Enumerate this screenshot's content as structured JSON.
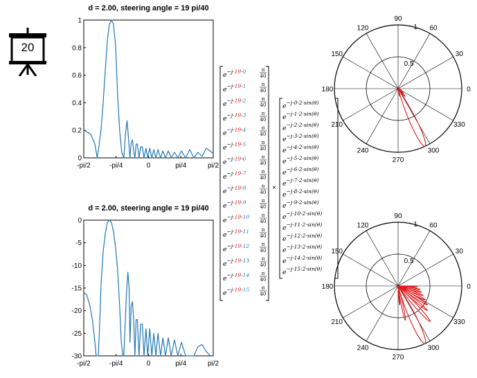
{
  "slide_number": "20",
  "colors": {
    "line": "#1f77b4",
    "polar": "#e0191a",
    "red_text": "#e0191a",
    "blue_text": "#1f77b4"
  },
  "chart_data": [
    {
      "type": "line",
      "title": "d = 2.00, steering angle  = 19 pi/40",
      "x_tick_labels": [
        "-pi/2",
        "-pi/4",
        "0",
        "pi/4",
        "pi/2"
      ],
      "x_ticks": [
        -1.5708,
        -0.7854,
        0,
        0.7854,
        1.5708
      ],
      "xlim": [
        -1.5708,
        1.5708
      ],
      "ylim": [
        0,
        1
      ],
      "y_ticks": [
        0,
        0.2,
        0.4,
        0.6,
        0.8,
        1
      ],
      "y_tick_labels": [
        "0",
        "0.2",
        "0.4",
        "0.6",
        "0.8",
        "1"
      ],
      "grid": false,
      "x": [
        -1.5708,
        -1.5,
        -1.4,
        -1.3,
        -1.245,
        -1.2,
        -1.15,
        -1.1,
        -1.05,
        -1.0,
        -0.95,
        -0.9,
        -0.85,
        -0.8,
        -0.78,
        -0.75,
        -0.7,
        -0.65,
        -0.6,
        -0.56,
        -0.52,
        -0.5,
        -0.47,
        -0.45,
        -0.42,
        -0.39,
        -0.36,
        -0.33,
        -0.3,
        -0.27,
        -0.23,
        -0.19,
        -0.15,
        -0.11,
        -0.06,
        -0.02,
        0.03,
        0.08,
        0.13,
        0.18,
        0.23,
        0.29,
        0.35,
        0.41,
        0.48,
        0.55,
        0.63,
        0.71,
        0.8,
        0.9,
        1.0,
        1.1,
        1.2,
        1.3,
        1.4,
        1.5,
        1.5708
      ],
      "y": [
        0.2,
        0.19,
        0.17,
        0.1,
        0.0,
        0.09,
        0.21,
        0.4,
        0.63,
        0.85,
        0.97,
        1.0,
        0.97,
        0.82,
        0.68,
        0.45,
        0.2,
        0.04,
        0.0,
        0.17,
        0.27,
        0.2,
        0.08,
        0.0,
        0.11,
        0.13,
        0.05,
        0.0,
        0.1,
        0.1,
        0.0,
        0.08,
        0.08,
        0.0,
        0.07,
        0.0,
        0.07,
        0.0,
        0.06,
        0.0,
        0.06,
        0.0,
        0.05,
        0.0,
        0.05,
        0.0,
        0.04,
        0.0,
        0.05,
        0.0,
        0.06,
        0.0,
        0.04,
        0.01,
        0.07,
        0.05,
        0.03
      ]
    },
    {
      "type": "line",
      "title": "d = 2.00, steering angle  = 19 pi/40",
      "x_tick_labels": [
        "-pi/2",
        "-pi/4",
        "0",
        "pi/4",
        "pi/2"
      ],
      "x_ticks": [
        -1.5708,
        -0.7854,
        0,
        0.7854,
        1.5708
      ],
      "xlim": [
        -1.5708,
        1.5708
      ],
      "ylim": [
        -30,
        0
      ],
      "y_ticks": [
        0,
        -5,
        -10,
        -15,
        -20,
        -25,
        -30
      ],
      "y_tick_labels": [
        "0",
        "-5",
        "-10",
        "-15",
        "-20",
        "-25",
        "-30"
      ],
      "grid": false,
      "x": [
        -1.5708,
        -1.5,
        -1.42,
        -1.36,
        -1.3,
        -1.27,
        -1.245,
        -1.22,
        -1.19,
        -1.15,
        -1.1,
        -1.05,
        -1.0,
        -0.95,
        -0.9,
        -0.85,
        -0.8,
        -0.75,
        -0.7,
        -0.66,
        -0.62,
        -0.6,
        -0.57,
        -0.54,
        -0.5,
        -0.47,
        -0.45,
        -0.42,
        -0.39,
        -0.36,
        -0.33,
        -0.3,
        -0.27,
        -0.23,
        -0.19,
        -0.15,
        -0.11,
        -0.06,
        -0.02,
        0.03,
        0.08,
        0.13,
        0.18,
        0.23,
        0.29,
        0.35,
        0.41,
        0.48,
        0.55,
        0.63,
        0.71,
        0.8,
        0.9,
        1.0,
        1.1,
        1.2,
        1.3,
        1.4,
        1.5
      ],
      "y": [
        -16,
        -16.5,
        -19,
        -22,
        -27,
        -30,
        -30,
        -30,
        -24,
        -14,
        -7,
        -3,
        -0.5,
        0,
        -0.5,
        -2.5,
        -6,
        -11,
        -19,
        -27,
        -30,
        -30,
        -24,
        -17,
        -11.5,
        -15,
        -27,
        -19,
        -18,
        -22,
        -30,
        -22,
        -22,
        -30,
        -23,
        -23,
        -30,
        -24,
        -30,
        -24,
        -30,
        -25,
        -30,
        -25,
        -30,
        -26,
        -30,
        -26,
        -30,
        -26.5,
        -30,
        -27,
        -30,
        -30,
        -30,
        -28,
        -27.5,
        -29,
        -30
      ]
    }
  ],
  "polar_plots": [
    {
      "angle_labels": [
        "0",
        "30",
        "60",
        "90",
        "120",
        "150",
        "180",
        "210",
        "240",
        "270",
        "300",
        "330"
      ],
      "radius_labels": [
        "0.5",
        "1"
      ],
      "lobes": [
        {
          "angle_deg": -65,
          "r": 1.0,
          "width_deg": 9
        },
        {
          "angle_deg": -48,
          "r": 0.16,
          "width_deg": 6
        },
        {
          "angle_deg": -40,
          "r": 0.1,
          "width_deg": 5
        },
        {
          "angle_deg": -33,
          "r": 0.08,
          "width_deg": 5
        },
        {
          "angle_deg": -78,
          "r": 0.12,
          "width_deg": 4
        },
        {
          "angle_deg": -25,
          "r": 0.05,
          "width_deg": 4
        }
      ]
    },
    {
      "angle_labels": [
        "0",
        "30",
        "60",
        "90",
        "120",
        "150",
        "180",
        "210",
        "240",
        "270",
        "300",
        "330"
      ],
      "radius_labels": [
        "0.5",
        "1"
      ],
      "lobes": [
        {
          "angle_deg": -65,
          "r": 1.0,
          "width_deg": 9
        },
        {
          "angle_deg": -48,
          "r": 0.75,
          "width_deg": 5
        },
        {
          "angle_deg": -40,
          "r": 0.6,
          "width_deg": 4
        },
        {
          "angle_deg": -33,
          "r": 0.55,
          "width_deg": 4
        },
        {
          "angle_deg": -27,
          "r": 0.48,
          "width_deg": 4
        },
        {
          "angle_deg": -21,
          "r": 0.42,
          "width_deg": 4
        },
        {
          "angle_deg": -15,
          "r": 0.38,
          "width_deg": 4
        },
        {
          "angle_deg": -9,
          "r": 0.35,
          "width_deg": 4
        },
        {
          "angle_deg": -3,
          "r": 0.3,
          "width_deg": 3
        },
        {
          "angle_deg": -78,
          "r": 0.55,
          "width_deg": 4
        },
        {
          "angle_deg": -85,
          "r": 0.3,
          "width_deg": 3
        }
      ]
    }
  ],
  "steering_vector": {
    "base": "e",
    "prefix": "−j·19·",
    "indices": [
      "0",
      "1",
      "2",
      "3",
      "4",
      "5",
      "6",
      "7",
      "8",
      "9",
      "10",
      "11",
      "12",
      "13",
      "14",
      "15"
    ],
    "frac_num": "π",
    "frac_den": "40"
  },
  "times_symbol": "×",
  "element_vector": {
    "base": "e",
    "items": [
      "−j·0·2·sin(θ)",
      "−j·1·2·sin(θ)",
      "−j·2·2·sin(θ)",
      "−j·3·2·sin(θ)",
      "−j·4·2·sin(θ)",
      "−j·5·2·sin(θ)",
      "−j·6·2·sin(θ)",
      "−j·7·2·sin(θ)",
      "−j·8·2·sin(θ)",
      "−j·9·2·sin(θ)",
      "−j·10·2·sin(θ)",
      "−j·11·2·sin(θ)",
      "−j·12·2·sin(θ)",
      "−j·13·2·sin(θ)",
      "−j·14·2·sin(θ)",
      "−j·15·2·sin(θ)"
    ]
  }
}
